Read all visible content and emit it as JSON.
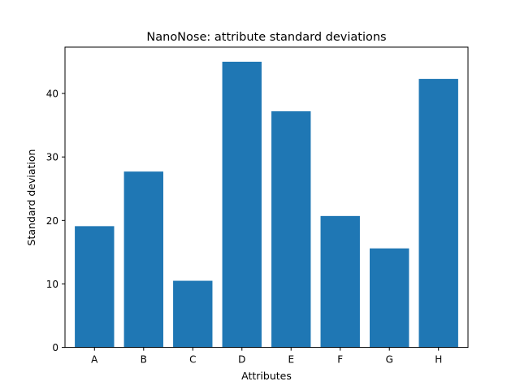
{
  "chart_data": {
    "type": "bar",
    "title": "NanoNose: attribute standard deviations",
    "xlabel": "Attributes",
    "ylabel": "Standard deviation",
    "categories": [
      "A",
      "B",
      "C",
      "D",
      "E",
      "F",
      "G",
      "H"
    ],
    "values": [
      19.1,
      27.7,
      10.5,
      45.0,
      37.2,
      20.7,
      15.6,
      42.3
    ],
    "ylim": [
      0,
      47.3
    ],
    "yticks": [
      0,
      10,
      20,
      30,
      40
    ],
    "bar_color": "#1f77b4",
    "grid": false,
    "legend": "none"
  }
}
